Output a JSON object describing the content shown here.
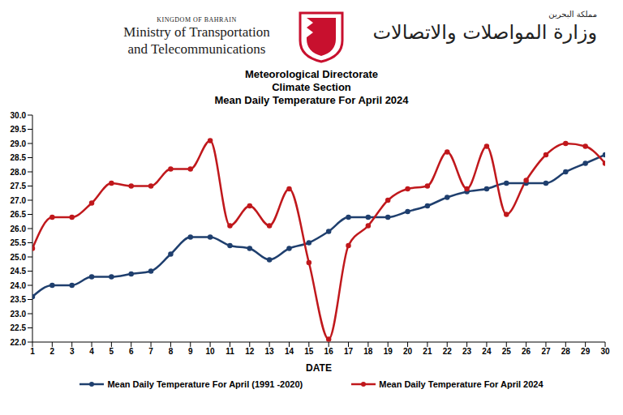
{
  "header": {
    "country_en": "KINGDOM OF BAHRAIN",
    "ministry_en": [
      "Ministry of Transportation",
      "and Telecommunications"
    ],
    "country_ar": "مملكة البحرين",
    "ministry_ar": "وزارة المواصلات والاتصالات"
  },
  "chart_data": {
    "type": "line",
    "subtitle": [
      "Meteorological Directorate",
      "Climate Section"
    ],
    "title": "Mean Daily Temperature For April 2024",
    "x_label": "DATE",
    "x": [
      1,
      2,
      3,
      4,
      5,
      6,
      7,
      8,
      9,
      10,
      11,
      12,
      13,
      14,
      15,
      16,
      17,
      18,
      19,
      20,
      21,
      22,
      23,
      24,
      25,
      26,
      27,
      28,
      29,
      30
    ],
    "xlim": [
      1,
      30
    ],
    "xticks": [
      1,
      2,
      3,
      4,
      5,
      6,
      7,
      8,
      9,
      10,
      11,
      12,
      13,
      14,
      15,
      16,
      17,
      18,
      19,
      20,
      21,
      22,
      23,
      24,
      25,
      26,
      27,
      28,
      29,
      30
    ],
    "ylim": [
      22,
      30
    ],
    "yticks": [
      {
        "value": 22,
        "label": "22.0"
      },
      22.5,
      {
        "value": 23,
        "label": "23.0"
      },
      23.5,
      {
        "value": 24,
        "label": "24.0"
      },
      24.5,
      {
        "value": 25,
        "label": "25.0"
      },
      25.5,
      {
        "value": 26,
        "label": "26.0"
      },
      26.5,
      {
        "value": 27,
        "label": "27.0"
      },
      27.5,
      {
        "value": 28,
        "label": "28.0"
      },
      28.5,
      {
        "value": 29,
        "label": "29.0"
      },
      29.5,
      {
        "value": 30,
        "label": "30.0"
      }
    ],
    "grid": false,
    "legend": "bottom",
    "series": [
      {
        "name": "Mean Daily Temperature For April (1991 -2020)",
        "color": "#1f3f6e",
        "marker": "circle",
        "values": [
          23.6,
          24.0,
          24.0,
          24.3,
          24.3,
          24.4,
          24.5,
          25.1,
          25.7,
          25.7,
          25.4,
          25.3,
          24.9,
          25.3,
          25.5,
          25.9,
          26.4,
          26.4,
          26.4,
          26.6,
          26.8,
          27.1,
          27.3,
          27.4,
          27.6,
          27.6,
          27.6,
          28.0,
          28.3,
          28.6
        ]
      },
      {
        "name": "Mean Daily Temperature For April 2024",
        "color": "#c0181c",
        "marker": "circle",
        "values": [
          25.3,
          26.4,
          26.4,
          26.9,
          27.6,
          27.5,
          27.5,
          28.1,
          28.1,
          29.1,
          26.1,
          26.8,
          26.1,
          27.4,
          24.8,
          22.1,
          25.4,
          26.1,
          27.0,
          27.4,
          27.5,
          28.7,
          27.4,
          28.9,
          26.5,
          27.7,
          28.6,
          29.0,
          28.9,
          28.3
        ]
      }
    ]
  }
}
